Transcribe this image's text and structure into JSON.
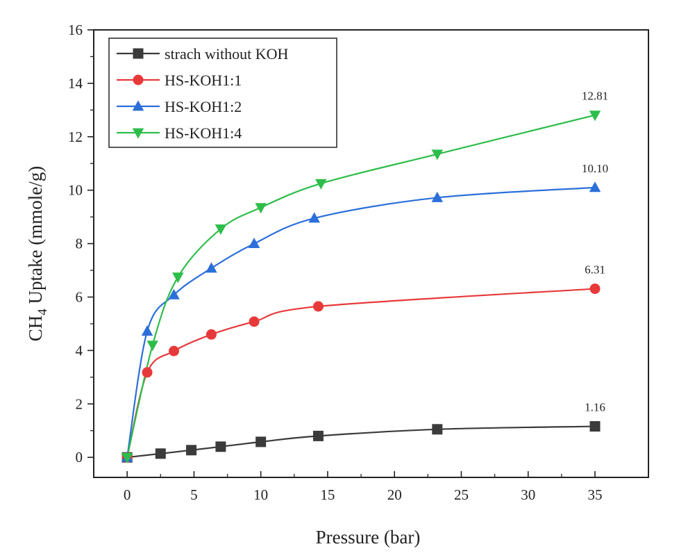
{
  "chart_data": {
    "type": "line",
    "title": "",
    "xlabel": "Pressure (bar)",
    "ylabel_main": "CH",
    "ylabel_sub": "4",
    "ylabel_rest": " Uptake (mmole/g)",
    "xlim": [
      -2.5,
      39
    ],
    "ylim": [
      -0.75,
      16
    ],
    "xticks": [
      0,
      5,
      10,
      15,
      20,
      25,
      30,
      35
    ],
    "yticks": [
      0,
      2,
      4,
      6,
      8,
      10,
      12,
      14,
      16
    ],
    "grid": false,
    "legend_position": "top-left",
    "series": [
      {
        "name": "strach without KOH",
        "color": "#3b3b3b",
        "marker": "square",
        "x": [
          0,
          2.5,
          4.8,
          7,
          10,
          14.3,
          23.2,
          35
        ],
        "y": [
          0,
          0.14,
          0.27,
          0.4,
          0.58,
          0.8,
          1.05,
          1.16
        ],
        "end_label": "1.16"
      },
      {
        "name": "HS-KOH1:1",
        "color": "#e8393a",
        "marker": "circle",
        "x": [
          0,
          1.5,
          3.5,
          6.3,
          9.5,
          14.3,
          35
        ],
        "y": [
          0,
          3.18,
          3.98,
          4.6,
          5.08,
          5.65,
          6.31
        ],
        "end_label": "6.31"
      },
      {
        "name": "HS-KOH1:2",
        "color": "#2b6fd9",
        "marker": "triangle-up",
        "x": [
          0,
          1.5,
          3.5,
          6.3,
          9.5,
          14,
          23.2,
          35
        ],
        "y": [
          0,
          4.72,
          6.08,
          7.08,
          8.0,
          8.95,
          9.72,
          10.1
        ],
        "end_label": "10.10"
      },
      {
        "name": "HS-KOH1:4",
        "color": "#2ebd4a",
        "marker": "triangle-down",
        "x": [
          0,
          1.9,
          3.8,
          7,
          10,
          14.5,
          23.2,
          35
        ],
        "y": [
          0,
          4.2,
          6.75,
          8.55,
          9.35,
          10.25,
          11.35,
          12.81
        ],
        "end_label": "12.81"
      }
    ]
  }
}
